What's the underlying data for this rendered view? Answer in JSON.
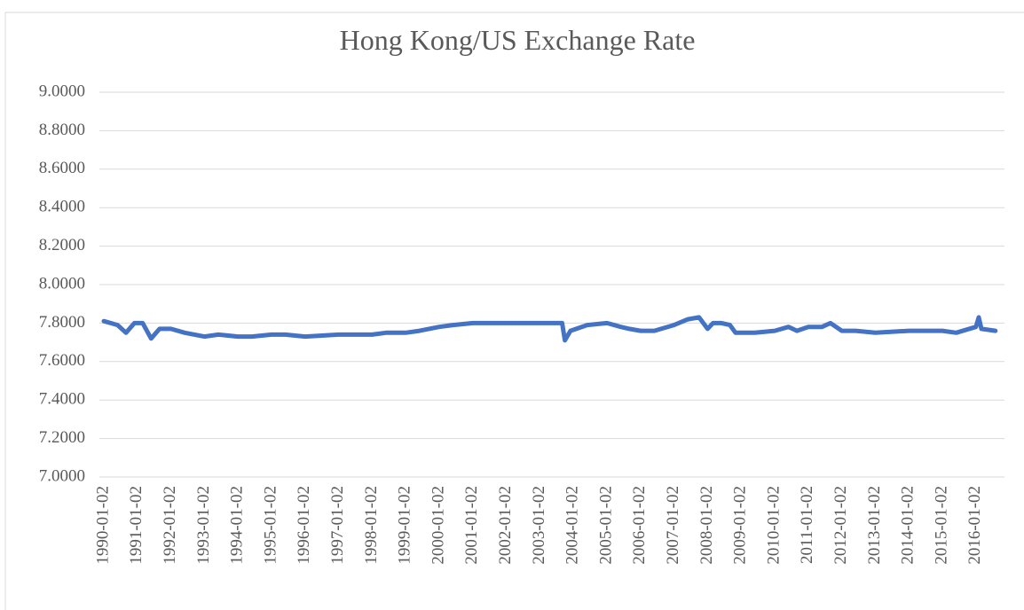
{
  "chart_data": {
    "type": "line",
    "title": "Hong Kong/US Exchange Rate",
    "x": [
      "1990-01-02",
      "1990-06-01",
      "1990-09-01",
      "1990-12-01",
      "1991-03-01",
      "1991-06-01",
      "1991-09-01",
      "1992-01-02",
      "1992-06-01",
      "1993-01-02",
      "1993-06-01",
      "1994-01-02",
      "1994-06-01",
      "1995-01-02",
      "1995-06-01",
      "1996-01-02",
      "1997-01-02",
      "1997-06-01",
      "1998-01-02",
      "1998-06-01",
      "1999-01-02",
      "1999-06-01",
      "2000-01-02",
      "2000-06-01",
      "2001-01-02",
      "2002-01-02",
      "2003-01-02",
      "2003-09-01",
      "2003-10-01",
      "2003-12-01",
      "2004-06-01",
      "2005-01-02",
      "2005-06-01",
      "2005-09-01",
      "2006-01-02",
      "2006-06-01",
      "2007-01-02",
      "2007-06-01",
      "2007-10-01",
      "2008-01-02",
      "2008-03-01",
      "2008-06-01",
      "2008-09-01",
      "2008-11-01",
      "2009-06-01",
      "2010-01-02",
      "2010-06-01",
      "2010-09-01",
      "2011-01-02",
      "2011-06-01",
      "2011-09-01",
      "2012-01-02",
      "2012-06-01",
      "2013-01-02",
      "2014-01-02",
      "2015-01-02",
      "2015-06-01",
      "2016-01-02",
      "2016-02-01",
      "2016-03-01",
      "2016-08-01"
    ],
    "series": [
      {
        "color": "#4472c4",
        "values": [
          7.81,
          7.79,
          7.75,
          7.8,
          7.8,
          7.72,
          7.77,
          7.77,
          7.75,
          7.73,
          7.74,
          7.73,
          7.73,
          7.74,
          7.74,
          7.73,
          7.74,
          7.74,
          7.74,
          7.75,
          7.75,
          7.76,
          7.78,
          7.79,
          7.8,
          7.8,
          7.8,
          7.8,
          7.71,
          7.76,
          7.79,
          7.8,
          7.78,
          7.77,
          7.76,
          7.76,
          7.79,
          7.82,
          7.83,
          7.77,
          7.8,
          7.8,
          7.79,
          7.75,
          7.75,
          7.76,
          7.78,
          7.76,
          7.78,
          7.78,
          7.8,
          7.76,
          7.76,
          7.75,
          7.76,
          7.76,
          7.75,
          7.78,
          7.83,
          7.77,
          7.76
        ]
      }
    ],
    "xlim": [
      "1990-01-02",
      "2016-09-30"
    ],
    "xticks": [
      "1990-01-02",
      "1991-01-02",
      "1992-01-02",
      "1993-01-02",
      "1994-01-02",
      "1995-01-02",
      "1996-01-02",
      "1997-01-02",
      "1998-01-02",
      "1999-01-02",
      "2000-01-02",
      "2001-01-02",
      "2002-01-02",
      "2003-01-02",
      "2004-01-02",
      "2005-01-02",
      "2006-01-02",
      "2007-01-02",
      "2008-01-02",
      "2009-01-02",
      "2010-01-02",
      "2011-01-02",
      "2012-01-02",
      "2013-01-02",
      "2014-01-02",
      "2015-01-02",
      "2016-01-02"
    ],
    "ylim": [
      7,
      9
    ],
    "yticks": [
      {
        "value": 7,
        "label": "7.0000"
      },
      {
        "value": 7.2,
        "label": "7.2000"
      },
      {
        "value": 7.4,
        "label": "7.4000"
      },
      {
        "value": 7.6,
        "label": "7.6000"
      },
      {
        "value": 7.8,
        "label": "7.8000"
      },
      {
        "value": 8,
        "label": "8.0000"
      },
      {
        "value": 8.2,
        "label": "8.2000"
      },
      {
        "value": 8.4,
        "label": "8.4000"
      },
      {
        "value": 8.6,
        "label": "8.6000"
      },
      {
        "value": 8.8,
        "label": "8.8000"
      },
      {
        "value": 9,
        "label": "9.0000"
      }
    ],
    "grid": true
  }
}
